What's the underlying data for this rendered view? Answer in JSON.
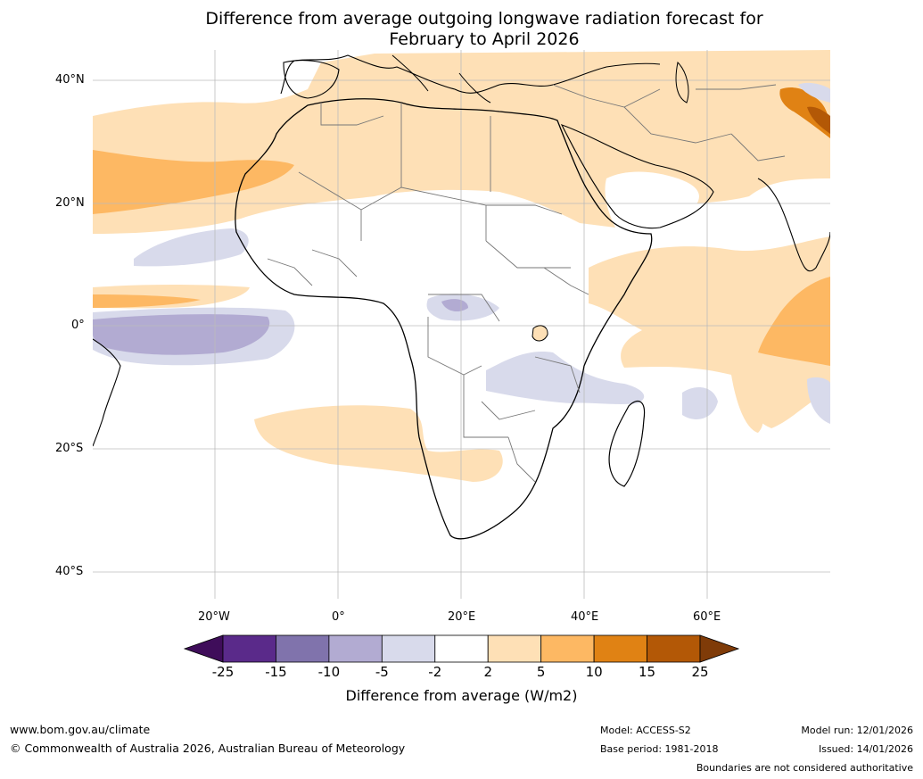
{
  "title_line1": "Difference from average outgoing longwave radiation forecast for",
  "title_line2": "February to April 2026",
  "lat_labels": [
    "40°N",
    "20°N",
    "0°",
    "20°S",
    "40°S"
  ],
  "lon_labels": [
    "20°W",
    "0°",
    "20°E",
    "40°E",
    "60°E"
  ],
  "colorbar": {
    "ticks": [
      "-25",
      "-15",
      "-10",
      "-5",
      "-2",
      "2",
      "5",
      "10",
      "15",
      "25"
    ],
    "colors": [
      "#3f0d5a",
      "#5a2a8a",
      "#8073ac",
      "#b2abd2",
      "#d8daeb",
      "#ffffff",
      "#fee0b6",
      "#fdb863",
      "#e08214",
      "#b35806",
      "#7f3b08"
    ],
    "label": "Difference from average (W/m2)"
  },
  "footer": {
    "website": "www.bom.gov.au/climate",
    "copyright": "© Commonwealth of Australia 2026, Australian Bureau of Meteorology",
    "model": "Model: ACCESS-S2",
    "base_period": "Base period: 1981-2018",
    "model_run": "Model run: 12/01/2026",
    "issued": "Issued: 14/01/2026",
    "disclaimer": "Boundaries are not considered authoritative"
  }
}
